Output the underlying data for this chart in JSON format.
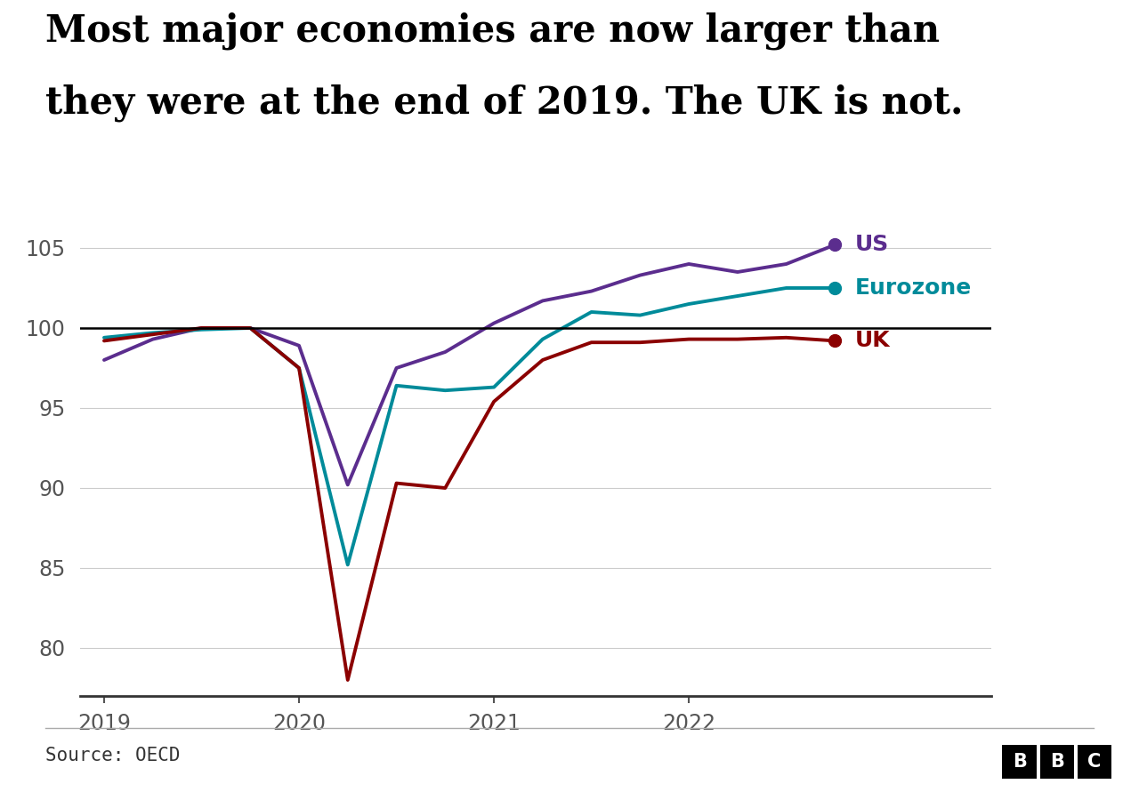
{
  "title_line1": "Most major economies are now larger than",
  "title_line2": "they were at the end of 2019. The UK is not.",
  "source": "Source: OECD",
  "background_color": "#ffffff",
  "reference_line": 100,
  "ylim": [
    77,
    107
  ],
  "yticks": [
    80,
    85,
    90,
    95,
    100,
    105
  ],
  "x_labels": [
    "2019",
    "2020",
    "2021",
    "2022"
  ],
  "series": {
    "US": {
      "color": "#5b2d8e",
      "linewidth": 2.8,
      "x": [
        0,
        1,
        2,
        3,
        4,
        5,
        6,
        7,
        8,
        9,
        10,
        11,
        12,
        13,
        14,
        15
      ],
      "y": [
        98.0,
        99.3,
        100.0,
        100.0,
        98.9,
        90.2,
        97.5,
        98.5,
        100.3,
        101.7,
        102.3,
        103.3,
        104.0,
        103.5,
        104.0,
        105.2
      ]
    },
    "Eurozone": {
      "color": "#008b9a",
      "linewidth": 2.8,
      "x": [
        0,
        1,
        2,
        3,
        4,
        5,
        6,
        7,
        8,
        9,
        10,
        11,
        12,
        13,
        14,
        15
      ],
      "y": [
        99.4,
        99.7,
        99.9,
        100.0,
        97.5,
        85.2,
        96.4,
        96.1,
        96.3,
        99.3,
        101.0,
        100.8,
        101.5,
        102.0,
        102.5,
        102.5
      ]
    },
    "UK": {
      "color": "#8b0000",
      "linewidth": 2.8,
      "x": [
        0,
        1,
        2,
        3,
        4,
        5,
        6,
        7,
        8,
        9,
        10,
        11,
        12,
        13,
        14,
        15
      ],
      "y": [
        99.2,
        99.6,
        100.0,
        100.0,
        97.5,
        78.0,
        90.3,
        90.0,
        95.4,
        98.0,
        99.1,
        99.1,
        99.3,
        99.3,
        99.4,
        99.2
      ]
    }
  },
  "x_tick_positions": [
    0,
    4,
    8,
    12
  ],
  "title_fontsize": 30,
  "axis_fontsize": 17,
  "label_fontsize": 18,
  "source_fontsize": 15
}
